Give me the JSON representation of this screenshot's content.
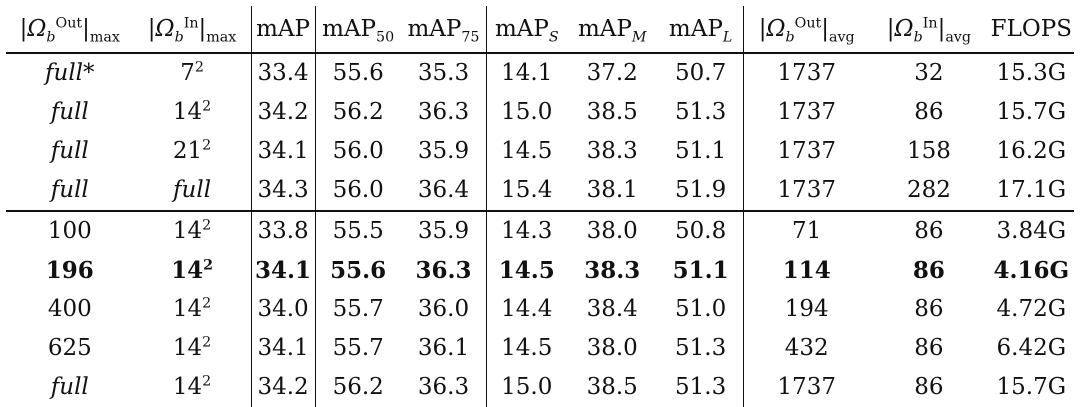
{
  "headers": {
    "out_max": {
      "bar_l": "|",
      "sym": "Ω",
      "sub": "b",
      "sup": "Out",
      "bar_r": "|",
      "tail": "max"
    },
    "in_max": {
      "bar_l": "|",
      "sym": "Ω",
      "sub": "b",
      "sup": "In",
      "bar_r": "|",
      "tail": "max"
    },
    "map": "mAP",
    "map50": {
      "base": "mAP",
      "sub": "50"
    },
    "map75": {
      "base": "mAP",
      "sub": "75"
    },
    "maps": {
      "base": "mAP",
      "sub": "S"
    },
    "mapm": {
      "base": "mAP",
      "sub": "M"
    },
    "mapl": {
      "base": "mAP",
      "sub": "L"
    },
    "out_avg": {
      "bar_l": "|",
      "sym": "Ω",
      "sub": "b",
      "sup": "Out",
      "bar_r": "|",
      "tail": "avg"
    },
    "in_avg": {
      "bar_l": "|",
      "sym": "Ω",
      "sub": "b",
      "sup": "In",
      "bar_r": "|",
      "tail": "avg"
    },
    "flops": "FLOPS"
  },
  "rows": [
    {
      "out_max": "full*",
      "in_base": "7",
      "in_exp": "2",
      "map": "33.4",
      "map50": "55.6",
      "map75": "35.3",
      "maps": "14.1",
      "mapm": "37.2",
      "mapl": "50.7",
      "out_avg": "1737",
      "in_avg": "32",
      "flops": "15.3G"
    },
    {
      "out_max": "full",
      "in_base": "14",
      "in_exp": "2",
      "map": "34.2",
      "map50": "56.2",
      "map75": "36.3",
      "maps": "15.0",
      "mapm": "38.5",
      "mapl": "51.3",
      "out_avg": "1737",
      "in_avg": "86",
      "flops": "15.7G"
    },
    {
      "out_max": "full",
      "in_base": "21",
      "in_exp": "2",
      "map": "34.1",
      "map50": "56.0",
      "map75": "35.9",
      "maps": "14.5",
      "mapm": "38.3",
      "mapl": "51.1",
      "out_avg": "1737",
      "in_avg": "158",
      "flops": "16.2G"
    },
    {
      "out_max": "full",
      "in_base": "full",
      "in_exp": "",
      "map": "34.3",
      "map50": "56.0",
      "map75": "36.4",
      "maps": "15.4",
      "mapm": "38.1",
      "mapl": "51.9",
      "out_avg": "1737",
      "in_avg": "282",
      "flops": "17.1G"
    },
    {
      "out_max": "100",
      "in_base": "14",
      "in_exp": "2",
      "map": "33.8",
      "map50": "55.5",
      "map75": "35.9",
      "maps": "14.3",
      "mapm": "38.0",
      "mapl": "50.8",
      "out_avg": "71",
      "in_avg": "86",
      "flops": "3.84G"
    },
    {
      "out_max": "196",
      "in_base": "14",
      "in_exp": "2",
      "map": "34.1",
      "map50": "55.6",
      "map75": "36.3",
      "maps": "14.5",
      "mapm": "38.3",
      "mapl": "51.1",
      "out_avg": "114",
      "in_avg": "86",
      "flops": "4.16G"
    },
    {
      "out_max": "400",
      "in_base": "14",
      "in_exp": "2",
      "map": "34.0",
      "map50": "55.7",
      "map75": "36.0",
      "maps": "14.4",
      "mapm": "38.4",
      "mapl": "51.0",
      "out_avg": "194",
      "in_avg": "86",
      "flops": "4.72G"
    },
    {
      "out_max": "625",
      "in_base": "14",
      "in_exp": "2",
      "map": "34.1",
      "map50": "55.7",
      "map75": "36.1",
      "maps": "14.5",
      "mapm": "38.0",
      "mapl": "51.3",
      "out_avg": "432",
      "in_avg": "86",
      "flops": "6.42G"
    },
    {
      "out_max": "full",
      "in_base": "14",
      "in_exp": "2",
      "map": "34.2",
      "map50": "56.2",
      "map75": "36.3",
      "maps": "15.0",
      "mapm": "38.5",
      "mapl": "51.3",
      "out_avg": "1737",
      "in_avg": "86",
      "flops": "15.7G"
    }
  ]
}
